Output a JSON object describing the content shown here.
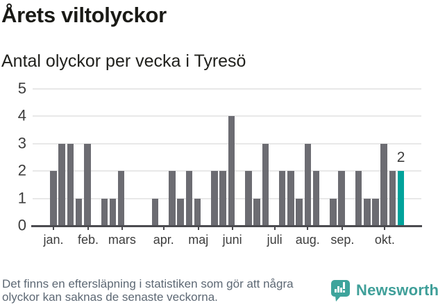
{
  "title": "Årets viltolyckor",
  "subtitle": "Antal olyckor per vecka i Tyresö",
  "annotation": {
    "label": "2"
  },
  "footer": {
    "note": "Det finns en eftersläpning i statistiken som gör att några olyckor kan saknas de senaste veckorna."
  },
  "branding": {
    "name": "Newsworthy",
    "icon": "newsworthy-speech-bubble-chart-icon",
    "icon_color": "#3ea49c",
    "text_color": "#3f9f99"
  },
  "colors": {
    "bar": "#6c6c72",
    "highlight": "#00a39b",
    "grid": "#e8e8e8",
    "axis": "#4b4b50",
    "tick_text": "#3d3d3d",
    "title_text": "#1a1a16",
    "footer_text": "#5d6874"
  },
  "chart_data": {
    "type": "bar",
    "title": "Årets viltolyckor",
    "subtitle": "Antal olyckor per vecka i Tyresö",
    "x_unit": "vecka",
    "n_weeks": 42,
    "values": [
      2,
      3,
      3,
      1,
      3,
      0,
      1,
      1,
      2,
      0,
      0,
      0,
      1,
      0,
      2,
      1,
      2,
      1,
      0,
      2,
      2,
      4,
      0,
      2,
      1,
      3,
      0,
      2,
      2,
      1,
      3,
      2,
      0,
      1,
      2,
      0,
      2,
      1,
      1,
      3,
      2,
      2
    ],
    "highlight": {
      "week": 42,
      "value": 2,
      "label": "2",
      "color": "#00a39b"
    },
    "ylim": [
      0,
      5
    ],
    "yticks": [
      0,
      1,
      2,
      3,
      4,
      5
    ],
    "grid": "horizontal",
    "legend": "none",
    "x_axis_months": [
      {
        "label": "jan.",
        "week": 1
      },
      {
        "label": "feb.",
        "week": 5.1
      },
      {
        "label": "mars",
        "week": 9.1
      },
      {
        "label": "apr.",
        "week": 14
      },
      {
        "label": "maj",
        "week": 18.1
      },
      {
        "label": "juni",
        "week": 22.1
      },
      {
        "label": "juli",
        "week": 27.1
      },
      {
        "label": "aug.",
        "week": 31
      },
      {
        "label": "sep.",
        "week": 35.1
      },
      {
        "label": "okt.",
        "week": 40.1
      }
    ]
  }
}
